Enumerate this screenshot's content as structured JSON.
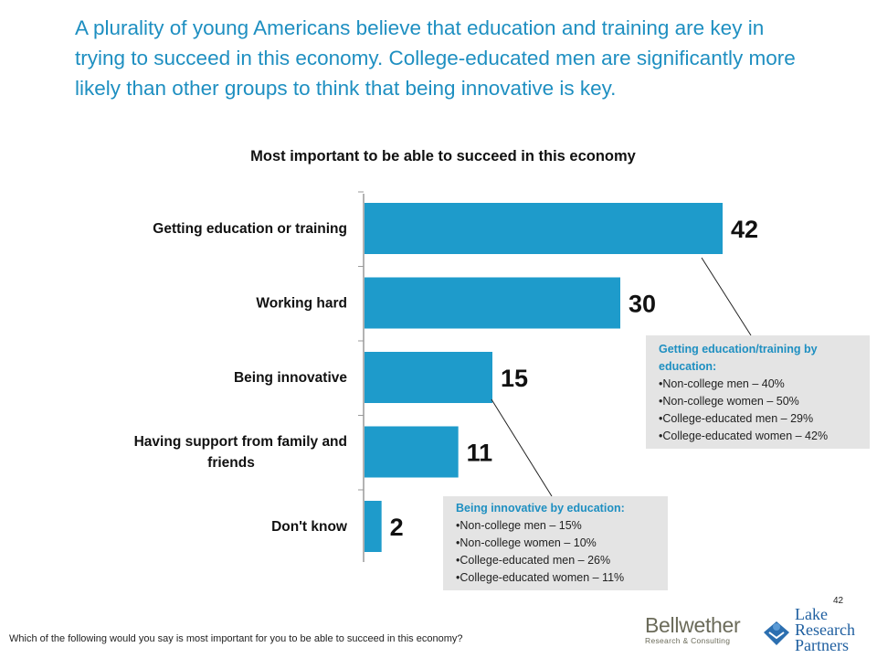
{
  "headline": "A plurality of young Americans believe that education and training are key in trying to succeed in this economy. College-educated men are significantly more likely than other groups to think that being innovative is key.",
  "chart_data": {
    "type": "bar",
    "orientation": "horizontal",
    "title": "Most important to be able to succeed in this economy",
    "categories": [
      "Getting education or training",
      "Working hard",
      "Being innovative",
      "Having support from family and friends",
      "Don't know"
    ],
    "values": [
      42,
      30,
      15,
      11,
      2
    ],
    "xlim": [
      0,
      42
    ],
    "grid": false,
    "bar_color": "#1e9bcb"
  },
  "callouts": {
    "education": {
      "title": "Getting education/training by education:",
      "items": [
        "Non-college men – 40%",
        "Non-college women – 50%",
        "College-educated men – 29%",
        "College-educated women – 42%"
      ]
    },
    "innovative": {
      "title": "Being innovative by education:",
      "items": [
        "Non-college men – 15%",
        "Non-college women – 10%",
        "College-educated men – 26%",
        "College-educated women – 11%"
      ]
    }
  },
  "page_number": "42",
  "footnote": "Which of the following would you say is most important for you to be able to succeed in this economy?",
  "logos": {
    "bellwether": {
      "name": "Bellwether",
      "sub": "Research & Consulting"
    },
    "lake": {
      "line1": "Lake",
      "line2": "Research",
      "line3": "Partners"
    }
  },
  "colors": {
    "accent": "#1e8fc1",
    "callout_bg": "#e4e4e4"
  }
}
